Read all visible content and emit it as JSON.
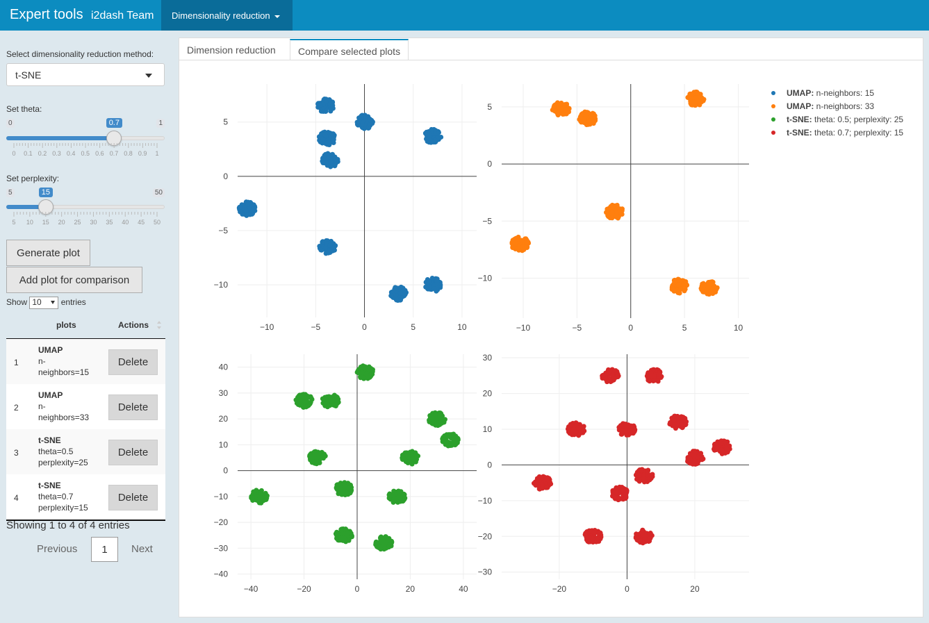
{
  "navbar": {
    "brand": "Expert tools",
    "team": "i2dash Team",
    "menu": "Dimensionality reduction"
  },
  "sidebar": {
    "method_label": "Select dimensionality reduction method:",
    "method_value": "t-SNE",
    "theta": {
      "label": "Set theta:",
      "min": "0",
      "max": "1",
      "value": "0.7",
      "fraction": 0.7,
      "ticks": [
        "0",
        "0.1",
        "0.2",
        "0.3",
        "0.4",
        "0.5",
        "0.6",
        "0.7",
        "0.8",
        "0.9",
        "1"
      ]
    },
    "perplexity": {
      "label": "Set perplexity:",
      "min": "5",
      "max": "50",
      "value": "15",
      "fraction": 0.222,
      "ticks": [
        "5",
        "10",
        "15",
        "20",
        "25",
        "30",
        "35",
        "40",
        "45",
        "50"
      ]
    },
    "generate_label": "Generate plot",
    "add_label": "Add plot for comparison",
    "show_prefix": "Show",
    "show_value": "10",
    "show_suffix": "entries",
    "table": {
      "headers": [
        "plots",
        "Actions"
      ],
      "rows": [
        {
          "num": "1",
          "method": "UMAP",
          "param1": "n-",
          "param2": "neighbors=15",
          "action": "Delete"
        },
        {
          "num": "2",
          "method": "UMAP",
          "param1": "n-",
          "param2": "neighbors=33",
          "action": "Delete"
        },
        {
          "num": "3",
          "method": "t-SNE",
          "param1": "theta=0.5",
          "param2": "perplexity=25",
          "action": "Delete"
        },
        {
          "num": "4",
          "method": "t-SNE",
          "param1": "theta=0.7",
          "param2": "perplexity=15",
          "action": "Delete"
        }
      ]
    },
    "showing": "Showing 1 to 4 of 4 entries",
    "previous": "Previous",
    "page": "1",
    "next": "Next"
  },
  "tabs": [
    "Dimension reduction",
    "Compare selected plots"
  ],
  "legend": [
    {
      "method": "UMAP:",
      "params": " n-neighbors: 15",
      "color": "#1f77b4"
    },
    {
      "method": "UMAP:",
      "params": " n-neighbors: 33",
      "color": "#ff7f0e"
    },
    {
      "method": "t-SNE:",
      "params": " theta: 0.5; perplexity: 25",
      "color": "#2ca02c"
    },
    {
      "method": "t-SNE:",
      "params": " theta: 0.7; perplexity: 15",
      "color": "#d62728"
    }
  ],
  "chart_data": [
    {
      "type": "scatter",
      "series_index": 0,
      "color": "#1f77b4",
      "xlim": [
        -13,
        11.5
      ],
      "ylim": [
        -13,
        8.5
      ],
      "xticks": [
        -10,
        -5,
        0,
        5,
        10
      ],
      "yticks": [
        -10,
        -5,
        0,
        5
      ],
      "xticklabels": [
        "−10",
        "−5",
        "0",
        "5",
        "10"
      ],
      "yticklabels": [
        "−10",
        "−5",
        "0",
        "5"
      ],
      "clusters": [
        [
          -4,
          6.5
        ],
        [
          -3.8,
          3.5
        ],
        [
          -3.5,
          1.5
        ],
        [
          0,
          5
        ],
        [
          7,
          3.7
        ],
        [
          -12,
          -3
        ],
        [
          -3.8,
          -6.5
        ],
        [
          3.5,
          -10.8
        ],
        [
          7,
          -10
        ]
      ]
    },
    {
      "type": "scatter",
      "series_index": 1,
      "color": "#ff7f0e",
      "xlim": [
        -12,
        11
      ],
      "ylim": [
        -13.5,
        7
      ],
      "xticks": [
        -10,
        -5,
        0,
        5,
        10
      ],
      "yticks": [
        -10,
        -5,
        0,
        5
      ],
      "xticklabels": [
        "−10",
        "−5",
        "0",
        "5",
        "10"
      ],
      "yticklabels": [
        "−10",
        "−5",
        "0",
        "5"
      ],
      "clusters": [
        [
          -6.5,
          4.8
        ],
        [
          -4,
          4
        ],
        [
          6,
          5.7
        ],
        [
          -1.5,
          -4.2
        ],
        [
          -10.3,
          -7
        ],
        [
          4.5,
          -10.7
        ],
        [
          7.3,
          -10.8
        ]
      ]
    },
    {
      "type": "scatter",
      "series_index": 2,
      "color": "#2ca02c",
      "xlim": [
        -45,
        45
      ],
      "ylim": [
        -42,
        45
      ],
      "xticks": [
        -40,
        -20,
        0,
        20,
        40
      ],
      "yticks": [
        -40,
        -30,
        -20,
        -10,
        0,
        10,
        20,
        30,
        40
      ],
      "xticklabels": [
        "−40",
        "−20",
        "0",
        "20",
        "40"
      ],
      "yticklabels": [
        "−40",
        "−30",
        "−20",
        "−10",
        "0",
        "10",
        "20",
        "30",
        "40"
      ],
      "clusters": [
        [
          3,
          38
        ],
        [
          -20,
          27
        ],
        [
          -10,
          27
        ],
        [
          -15,
          5
        ],
        [
          -37,
          -10
        ],
        [
          -5,
          -25
        ],
        [
          10,
          -28
        ],
        [
          20,
          5
        ],
        [
          30,
          20
        ],
        [
          35,
          12
        ],
        [
          -5,
          -7
        ],
        [
          15,
          -10
        ]
      ]
    },
    {
      "type": "scatter",
      "series_index": 3,
      "color": "#d62728",
      "xlim": [
        -37,
        36
      ],
      "ylim": [
        -32,
        31
      ],
      "xticks": [
        -20,
        0,
        20
      ],
      "yticks": [
        -30,
        -20,
        -10,
        0,
        10,
        20,
        30
      ],
      "xticklabels": [
        "−20",
        "0",
        "20"
      ],
      "yticklabels": [
        "−30",
        "−20",
        "−10",
        "0",
        "10",
        "20",
        "30"
      ],
      "clusters": [
        [
          -5,
          25
        ],
        [
          8,
          25
        ],
        [
          -15,
          10
        ],
        [
          0,
          10
        ],
        [
          15,
          12
        ],
        [
          -25,
          -5
        ],
        [
          -10,
          -20
        ],
        [
          5,
          -20
        ],
        [
          20,
          2
        ],
        [
          28,
          5
        ],
        [
          5,
          -3
        ],
        [
          -2,
          -8
        ]
      ]
    }
  ]
}
